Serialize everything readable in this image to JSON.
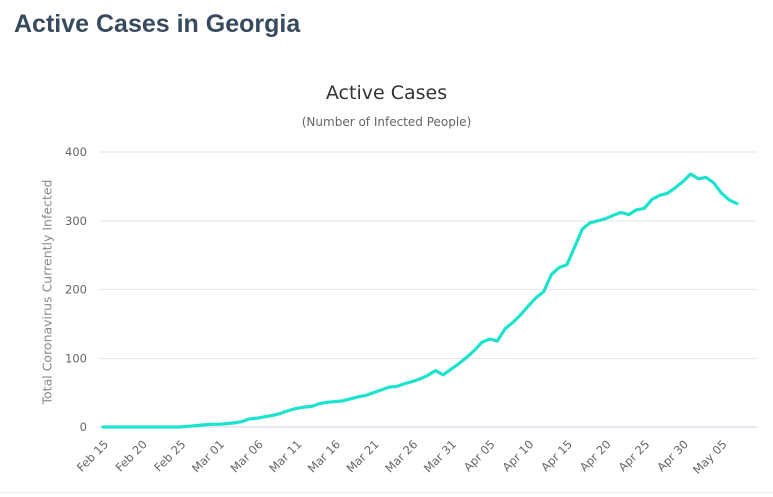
{
  "page": {
    "title": "Active Cases in Georgia"
  },
  "chart_data": {
    "type": "line",
    "title": "Active Cases",
    "subtitle": "(Number of Infected People)",
    "xlabel": "",
    "ylabel": "Total Coronavirus Currently Infected",
    "ylim": [
      0,
      400
    ],
    "yticks": [
      0,
      100,
      200,
      300,
      400
    ],
    "grid": true,
    "legend": false,
    "line_color": "#1ce3cd",
    "grid_color": "#e6e6e6",
    "axis_line_color": "#ccd6eb",
    "tick_label_color": "#666666",
    "xtick_labels": [
      "Feb 15",
      "Feb 20",
      "Feb 25",
      "Mar 01",
      "Mar 06",
      "Mar 11",
      "Mar 16",
      "Mar 21",
      "Mar 26",
      "Mar 31",
      "Apr 05",
      "Apr 10",
      "Apr 15",
      "Apr 20",
      "Apr 25",
      "Apr 30",
      "May 05"
    ],
    "x": [
      "Feb 15",
      "Feb 16",
      "Feb 17",
      "Feb 18",
      "Feb 19",
      "Feb 20",
      "Feb 21",
      "Feb 22",
      "Feb 23",
      "Feb 24",
      "Feb 25",
      "Feb 26",
      "Feb 27",
      "Feb 28",
      "Feb 29",
      "Mar 01",
      "Mar 02",
      "Mar 03",
      "Mar 04",
      "Mar 05",
      "Mar 06",
      "Mar 07",
      "Mar 08",
      "Mar 09",
      "Mar 10",
      "Mar 11",
      "Mar 12",
      "Mar 13",
      "Mar 14",
      "Mar 15",
      "Mar 16",
      "Mar 17",
      "Mar 18",
      "Mar 19",
      "Mar 20",
      "Mar 21",
      "Mar 22",
      "Mar 23",
      "Mar 24",
      "Mar 25",
      "Mar 26",
      "Mar 27",
      "Mar 28",
      "Mar 29",
      "Mar 30",
      "Mar 31",
      "Apr 01",
      "Apr 02",
      "Apr 03",
      "Apr 04",
      "Apr 05",
      "Apr 06",
      "Apr 07",
      "Apr 08",
      "Apr 09",
      "Apr 10",
      "Apr 11",
      "Apr 12",
      "Apr 13",
      "Apr 14",
      "Apr 15",
      "Apr 16",
      "Apr 17",
      "Apr 18",
      "Apr 19",
      "Apr 20",
      "Apr 21",
      "Apr 22",
      "Apr 23",
      "Apr 24",
      "Apr 25",
      "Apr 26",
      "Apr 27",
      "Apr 28",
      "Apr 29",
      "Apr 30",
      "May 01",
      "May 02",
      "May 03",
      "May 04",
      "May 05",
      "May 06",
      "May 07"
    ],
    "series": [
      {
        "name": "Total Coronavirus Currently Infected",
        "values": [
          0,
          0,
          0,
          0,
          0,
          0,
          0,
          0,
          0,
          0,
          0,
          1,
          2,
          3,
          4,
          4,
          5,
          6,
          8,
          12,
          13,
          15,
          17,
          20,
          24,
          27,
          29,
          30,
          34,
          36,
          37,
          38,
          41,
          44,
          46,
          50,
          54,
          58,
          59,
          63,
          66,
          70,
          75,
          82,
          76,
          84,
          92,
          101,
          111,
          123,
          128,
          125,
          143,
          152,
          163,
          176,
          188,
          197,
          222,
          232,
          236,
          262,
          288,
          297,
          300,
          303,
          308,
          312,
          309,
          316,
          318,
          331,
          337,
          340,
          348,
          357,
          368,
          361,
          363,
          355,
          340,
          330,
          325
        ]
      }
    ]
  }
}
